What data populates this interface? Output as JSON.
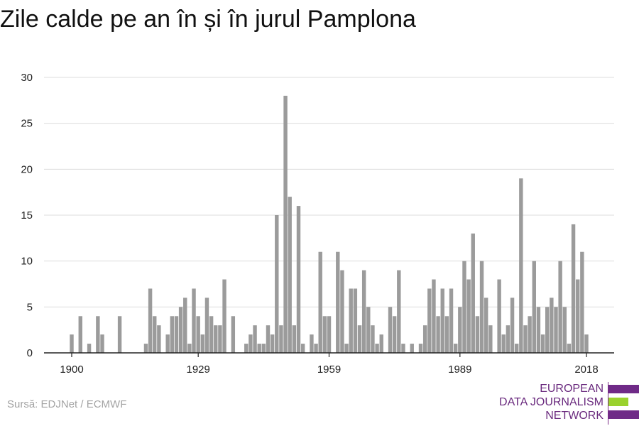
{
  "title": "Zile calde pe an în și în jurul Pamplona",
  "source": "Sursă: EDJNet / ECMWF",
  "logo": {
    "line1": "EUROPEAN",
    "line2": "DATA JOURNALISM",
    "line3": "NETWORK",
    "colors": [
      "#6f2a87",
      "#9ad22e",
      "#6f2a87"
    ]
  },
  "chart_data": {
    "type": "bar",
    "title": "Zile calde pe an în și în jurul Pamplona",
    "xlabel": "",
    "ylabel": "",
    "bar_color": "#9b9b9b",
    "grid": true,
    "ylim": [
      0,
      30
    ],
    "yticks": [
      0,
      5,
      10,
      15,
      20,
      25,
      30
    ],
    "xticks": [
      1900,
      1929,
      1959,
      1989,
      2018
    ],
    "x": [
      1900,
      1901,
      1902,
      1903,
      1904,
      1905,
      1906,
      1907,
      1908,
      1909,
      1910,
      1911,
      1912,
      1913,
      1914,
      1915,
      1916,
      1917,
      1918,
      1919,
      1920,
      1921,
      1922,
      1923,
      1924,
      1925,
      1926,
      1927,
      1928,
      1929,
      1930,
      1931,
      1932,
      1933,
      1934,
      1935,
      1936,
      1937,
      1938,
      1939,
      1940,
      1941,
      1942,
      1943,
      1944,
      1945,
      1946,
      1947,
      1948,
      1949,
      1950,
      1951,
      1952,
      1953,
      1954,
      1955,
      1956,
      1957,
      1958,
      1959,
      1960,
      1961,
      1962,
      1963,
      1964,
      1965,
      1966,
      1967,
      1968,
      1969,
      1970,
      1971,
      1972,
      1973,
      1974,
      1975,
      1976,
      1977,
      1978,
      1979,
      1980,
      1981,
      1982,
      1983,
      1984,
      1985,
      1986,
      1987,
      1988,
      1989,
      1990,
      1991,
      1992,
      1993,
      1994,
      1995,
      1996,
      1997,
      1998,
      1999,
      2000,
      2001,
      2002,
      2003,
      2004,
      2005,
      2006,
      2007,
      2008,
      2009,
      2010,
      2011,
      2012,
      2013,
      2014,
      2015,
      2016,
      2017,
      2018
    ],
    "values": [
      2,
      0,
      4,
      0,
      1,
      0,
      4,
      2,
      0,
      0,
      0,
      4,
      0,
      0,
      0,
      0,
      0,
      1,
      7,
      4,
      3,
      0,
      2,
      4,
      4,
      5,
      6,
      1,
      7,
      4,
      2,
      6,
      4,
      3,
      3,
      8,
      0,
      4,
      0,
      0,
      1,
      2,
      3,
      1,
      1,
      3,
      2,
      15,
      3,
      28,
      17,
      3,
      16,
      1,
      0,
      2,
      1,
      11,
      4,
      4,
      0,
      11,
      9,
      1,
      7,
      7,
      3,
      9,
      5,
      3,
      1,
      2,
      0,
      5,
      4,
      9,
      1,
      0,
      1,
      0,
      1,
      3,
      7,
      8,
      4,
      7,
      4,
      7,
      1,
      5,
      10,
      8,
      13,
      4,
      10,
      6,
      3,
      0,
      8,
      2,
      3,
      6,
      1,
      19,
      3,
      4,
      10,
      5,
      2,
      5,
      6,
      5,
      10,
      5,
      1,
      14,
      8,
      11,
      2
    ]
  }
}
